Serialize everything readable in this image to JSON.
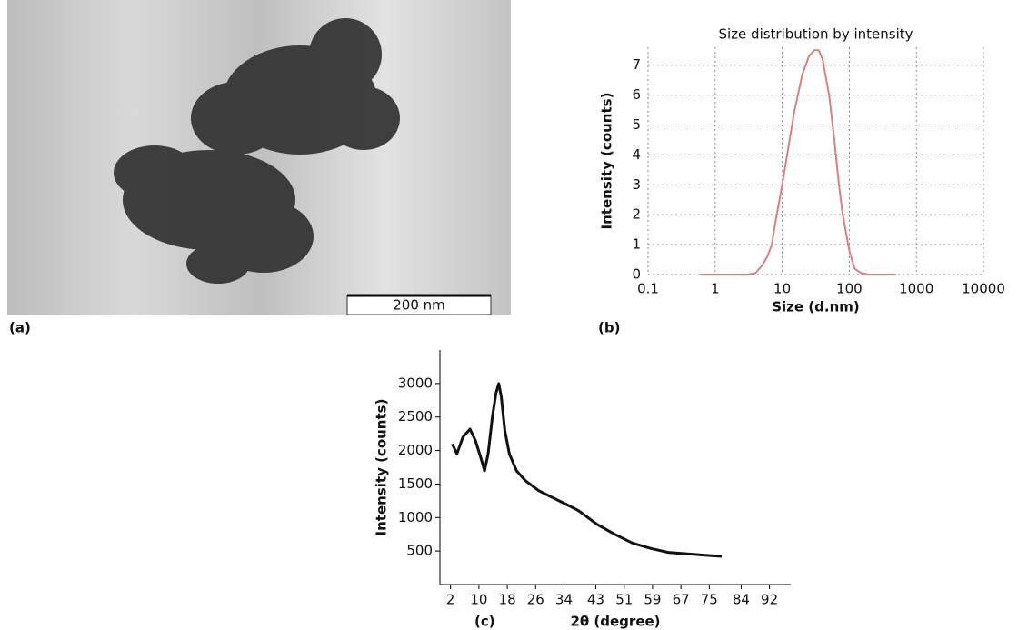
{
  "image": {
    "panel_label": "(a)",
    "scale_bar": "200 nm"
  },
  "chart_data": [
    {
      "type": "line",
      "panel_label": "(b)",
      "title": "Size distribution by intensity",
      "x_label": "Size (d.nm)",
      "y_label": "Intensity (counts)",
      "x_scale": "log",
      "grid": true,
      "color": "#d98080",
      "xlim": [
        0.1,
        10000
      ],
      "xticks": [
        0.1,
        1,
        10,
        100,
        1000,
        10000
      ],
      "ylim": [
        0,
        7.6
      ],
      "yticks": [
        0,
        1,
        2,
        3,
        4,
        5,
        6,
        7
      ],
      "x": [
        0.6,
        1,
        2,
        3,
        4,
        5,
        6,
        7,
        8,
        10,
        15,
        20,
        25,
        30,
        35,
        40,
        50,
        60,
        70,
        80,
        100,
        120,
        150,
        200,
        300,
        500
      ],
      "values": [
        0,
        0,
        0,
        0,
        0.05,
        0.3,
        0.6,
        1,
        1.8,
        3,
        5.4,
        6.7,
        7.3,
        7.5,
        7.5,
        7.2,
        6,
        4.5,
        3,
        2,
        0.8,
        0.2,
        0.05,
        0,
        0,
        0
      ]
    },
    {
      "type": "line",
      "panel_label": "(c)",
      "x_label": "2θ (degree)",
      "y_label": "Intensity (counts)",
      "x_scale": "linear",
      "grid": false,
      "color": "#111111",
      "xlim": [
        -1,
        98
      ],
      "xticks": [
        2,
        10,
        18,
        26,
        34,
        43,
        51,
        59,
        67,
        75,
        84,
        92
      ],
      "ylim": [
        0,
        3500
      ],
      "yticks": [
        500,
        1000,
        1500,
        2000,
        2500,
        3000
      ],
      "x": [
        2.5,
        3.8,
        5.5,
        7.5,
        9,
        10.5,
        11.6,
        12.6,
        13.8,
        14.8,
        15.6,
        16.3,
        17.3,
        18.6,
        20.6,
        23.1,
        26.9,
        30.7,
        34.5,
        38.2,
        43.3,
        48.3,
        53.3,
        58.4,
        63.4,
        68.4,
        73.4,
        78.5
      ],
      "values": [
        2100,
        1950,
        2200,
        2320,
        2150,
        1900,
        1700,
        1950,
        2500,
        2850,
        3000,
        2800,
        2300,
        1950,
        1700,
        1550,
        1400,
        1300,
        1200,
        1100,
        900,
        750,
        620,
        540,
        480,
        460,
        440,
        420
      ]
    }
  ]
}
